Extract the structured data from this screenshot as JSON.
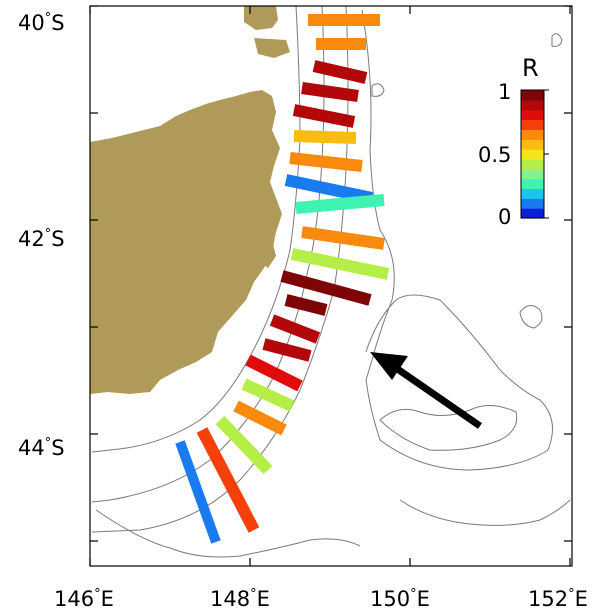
{
  "map": {
    "lat_labels": [
      "40",
      "42",
      "44"
    ],
    "lat_suffix": "S",
    "lon_labels": [
      "146",
      "148",
      "150",
      "152"
    ],
    "lon_suffix": "E",
    "degree_symbol": "°",
    "land_color": "#b09a5a"
  },
  "colorbar": {
    "title": "R",
    "tick_labels": [
      "1",
      "0.5",
      "0"
    ],
    "colors": [
      "#0a1fd8",
      "#1a7bf0",
      "#18c6ee",
      "#3ef2b0",
      "#86f08a",
      "#b6ee48",
      "#f5e61a",
      "#fbbc12",
      "#f98a0d",
      "#f5400c",
      "#e00c0c",
      "#b2080a",
      "#7e0506"
    ]
  },
  "segments": [
    {
      "R": 0.65
    },
    {
      "R": 0.7
    },
    {
      "R": 0.88
    },
    {
      "R": 0.9
    },
    {
      "R": 0.9
    },
    {
      "R": 0.57
    },
    {
      "R": 0.68
    },
    {
      "R": 0.12
    },
    {
      "R": 0.22
    },
    {
      "R": 0.65
    },
    {
      "R": 0.45
    },
    {
      "R": 1.0
    },
    {
      "R": 0.97
    },
    {
      "R": 0.93
    },
    {
      "R": 0.95
    },
    {
      "R": 0.86
    },
    {
      "R": 0.42
    },
    {
      "R": 0.65
    },
    {
      "R": 0.4
    },
    {
      "R": 0.72
    },
    {
      "R": 0.1
    }
  ]
}
